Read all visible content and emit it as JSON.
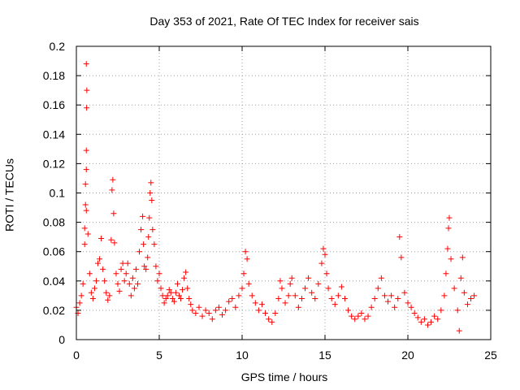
{
  "chart_data": {
    "type": "scatter",
    "title": "Day 353 of 2021, Rate Of TEC Index for receiver sais",
    "xlabel": "GPS time / hours",
    "ylabel": "ROTI / TECUs",
    "xlim": [
      0,
      25
    ],
    "ylim": [
      0,
      0.2
    ],
    "x_ticks": [
      0,
      5,
      10,
      15,
      20,
      25
    ],
    "x_tick_labels": [
      "0",
      "5",
      "10",
      "15",
      "20",
      "25"
    ],
    "y_ticks": [
      0,
      0.02,
      0.04,
      0.06,
      0.08,
      0.1,
      0.12,
      0.14,
      0.16,
      0.18,
      0.2
    ],
    "y_tick_labels": [
      "0",
      "0.02",
      "0.04",
      "0.06",
      "0.08",
      "0.1",
      "0.12",
      "0.14",
      "0.16",
      "0.18",
      "0.2"
    ],
    "grid": true,
    "marker": "+",
    "color": "#ff0000",
    "series": [
      {
        "name": "ROTI",
        "points": [
          [
            0.0,
            0.022
          ],
          [
            0.1,
            0.018
          ],
          [
            0.2,
            0.025
          ],
          [
            0.3,
            0.03
          ],
          [
            0.4,
            0.038
          ],
          [
            0.5,
            0.076
          ],
          [
            0.55,
            0.106
          ],
          [
            0.6,
            0.129
          ],
          [
            0.62,
            0.158
          ],
          [
            0.63,
            0.17
          ],
          [
            0.6,
            0.188
          ],
          [
            0.6,
            0.116
          ],
          [
            0.55,
            0.092
          ],
          [
            0.6,
            0.088
          ],
          [
            0.7,
            0.072
          ],
          [
            0.5,
            0.065
          ],
          [
            0.8,
            0.045
          ],
          [
            0.9,
            0.032
          ],
          [
            1.0,
            0.028
          ],
          [
            1.1,
            0.035
          ],
          [
            1.2,
            0.04
          ],
          [
            1.3,
            0.052
          ],
          [
            1.4,
            0.055
          ],
          [
            1.5,
            0.069
          ],
          [
            1.6,
            0.048
          ],
          [
            1.7,
            0.04
          ],
          [
            1.8,
            0.032
          ],
          [
            1.9,
            0.027
          ],
          [
            2.0,
            0.03
          ],
          [
            2.1,
            0.068
          ],
          [
            2.15,
            0.102
          ],
          [
            2.2,
            0.109
          ],
          [
            2.25,
            0.086
          ],
          [
            2.3,
            0.066
          ],
          [
            2.4,
            0.045
          ],
          [
            2.5,
            0.038
          ],
          [
            2.6,
            0.033
          ],
          [
            2.7,
            0.048
          ],
          [
            2.8,
            0.052
          ],
          [
            2.9,
            0.04
          ],
          [
            3.0,
            0.045
          ],
          [
            3.1,
            0.052
          ],
          [
            3.2,
            0.038
          ],
          [
            3.3,
            0.03
          ],
          [
            3.4,
            0.042
          ],
          [
            3.5,
            0.035
          ],
          [
            3.6,
            0.048
          ],
          [
            3.7,
            0.038
          ],
          [
            3.8,
            0.06
          ],
          [
            3.9,
            0.075
          ],
          [
            4.0,
            0.084
          ],
          [
            4.05,
            0.065
          ],
          [
            4.1,
            0.05
          ],
          [
            4.2,
            0.048
          ],
          [
            4.3,
            0.056
          ],
          [
            4.35,
            0.07
          ],
          [
            4.4,
            0.083
          ],
          [
            4.45,
            0.1
          ],
          [
            4.5,
            0.107
          ],
          [
            4.55,
            0.095
          ],
          [
            4.6,
            0.075
          ],
          [
            4.7,
            0.065
          ],
          [
            4.8,
            0.05
          ],
          [
            4.9,
            0.04
          ],
          [
            5.0,
            0.045
          ],
          [
            5.1,
            0.035
          ],
          [
            5.2,
            0.03
          ],
          [
            5.3,
            0.025
          ],
          [
            5.4,
            0.028
          ],
          [
            5.5,
            0.03
          ],
          [
            5.6,
            0.034
          ],
          [
            5.7,
            0.032
          ],
          [
            5.8,
            0.028
          ],
          [
            5.9,
            0.026
          ],
          [
            6.0,
            0.032
          ],
          [
            6.1,
            0.038
          ],
          [
            6.2,
            0.03
          ],
          [
            6.3,
            0.028
          ],
          [
            6.4,
            0.034
          ],
          [
            6.5,
            0.042
          ],
          [
            6.6,
            0.046
          ],
          [
            6.7,
            0.035
          ],
          [
            6.8,
            0.028
          ],
          [
            6.9,
            0.024
          ],
          [
            7.0,
            0.02
          ],
          [
            7.2,
            0.018
          ],
          [
            7.4,
            0.022
          ],
          [
            7.6,
            0.016
          ],
          [
            7.8,
            0.02
          ],
          [
            8.0,
            0.018
          ],
          [
            8.2,
            0.014
          ],
          [
            8.4,
            0.02
          ],
          [
            8.6,
            0.022
          ],
          [
            8.8,
            0.017
          ],
          [
            9.0,
            0.02
          ],
          [
            9.2,
            0.026
          ],
          [
            9.4,
            0.028
          ],
          [
            9.6,
            0.022
          ],
          [
            9.8,
            0.03
          ],
          [
            10.0,
            0.035
          ],
          [
            10.1,
            0.045
          ],
          [
            10.2,
            0.06
          ],
          [
            10.3,
            0.055
          ],
          [
            10.4,
            0.038
          ],
          [
            10.6,
            0.03
          ],
          [
            10.8,
            0.025
          ],
          [
            11.0,
            0.02
          ],
          [
            11.2,
            0.024
          ],
          [
            11.4,
            0.018
          ],
          [
            11.6,
            0.014
          ],
          [
            11.8,
            0.012
          ],
          [
            12.0,
            0.018
          ],
          [
            12.2,
            0.028
          ],
          [
            12.3,
            0.04
          ],
          [
            12.4,
            0.035
          ],
          [
            12.6,
            0.025
          ],
          [
            12.8,
            0.03
          ],
          [
            12.9,
            0.038
          ],
          [
            13.0,
            0.042
          ],
          [
            13.2,
            0.03
          ],
          [
            13.4,
            0.022
          ],
          [
            13.6,
            0.028
          ],
          [
            13.8,
            0.035
          ],
          [
            14.0,
            0.042
          ],
          [
            14.2,
            0.032
          ],
          [
            14.4,
            0.028
          ],
          [
            14.6,
            0.038
          ],
          [
            14.8,
            0.052
          ],
          [
            14.9,
            0.062
          ],
          [
            15.0,
            0.058
          ],
          [
            15.1,
            0.045
          ],
          [
            15.2,
            0.035
          ],
          [
            15.4,
            0.028
          ],
          [
            15.6,
            0.024
          ],
          [
            15.8,
            0.03
          ],
          [
            16.0,
            0.036
          ],
          [
            16.2,
            0.028
          ],
          [
            16.4,
            0.02
          ],
          [
            16.6,
            0.016
          ],
          [
            16.8,
            0.014
          ],
          [
            17.0,
            0.016
          ],
          [
            17.2,
            0.018
          ],
          [
            17.4,
            0.014
          ],
          [
            17.6,
            0.016
          ],
          [
            17.8,
            0.022
          ],
          [
            18.0,
            0.028
          ],
          [
            18.2,
            0.035
          ],
          [
            18.4,
            0.042
          ],
          [
            18.6,
            0.03
          ],
          [
            18.8,
            0.026
          ],
          [
            19.0,
            0.03
          ],
          [
            19.2,
            0.022
          ],
          [
            19.4,
            0.028
          ],
          [
            19.5,
            0.07
          ],
          [
            19.6,
            0.056
          ],
          [
            19.8,
            0.032
          ],
          [
            20.0,
            0.025
          ],
          [
            20.2,
            0.022
          ],
          [
            20.4,
            0.018
          ],
          [
            20.6,
            0.015
          ],
          [
            20.8,
            0.012
          ],
          [
            21.0,
            0.014
          ],
          [
            21.2,
            0.01
          ],
          [
            21.4,
            0.012
          ],
          [
            21.6,
            0.016
          ],
          [
            21.8,
            0.014
          ],
          [
            22.0,
            0.02
          ],
          [
            22.2,
            0.03
          ],
          [
            22.3,
            0.045
          ],
          [
            22.4,
            0.062
          ],
          [
            22.45,
            0.076
          ],
          [
            22.5,
            0.083
          ],
          [
            22.6,
            0.055
          ],
          [
            22.8,
            0.035
          ],
          [
            23.0,
            0.02
          ],
          [
            23.1,
            0.006
          ],
          [
            23.2,
            0.042
          ],
          [
            23.3,
            0.056
          ],
          [
            23.4,
            0.032
          ],
          [
            23.6,
            0.024
          ],
          [
            23.8,
            0.028
          ],
          [
            24.0,
            0.03
          ]
        ]
      }
    ]
  }
}
